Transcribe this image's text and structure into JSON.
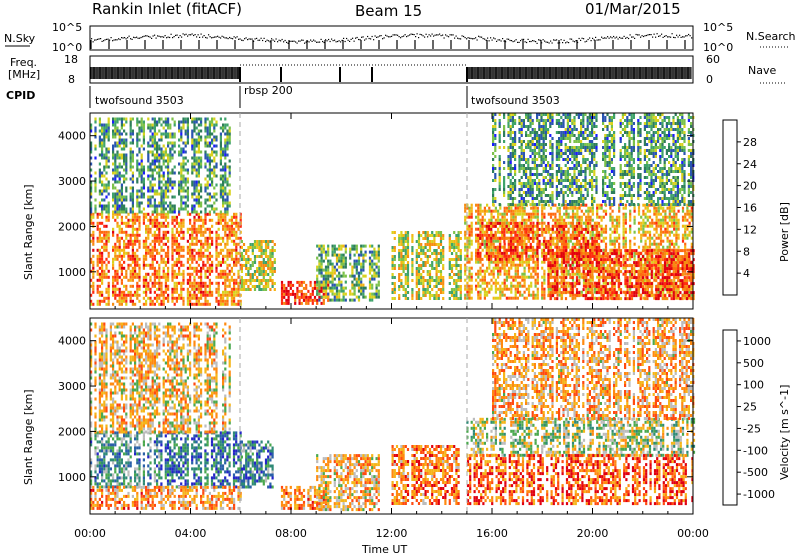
{
  "header": {
    "station": "Rankin Inlet (fitACF)",
    "beam": "Beam 15",
    "date": "01/Mar/2015"
  },
  "top_strips": {
    "nsky_label": "N.Sky",
    "nsky_ticks": [
      "10^5",
      "10^0"
    ],
    "nsearch_label": "N.Search",
    "nsearch_ticks": [
      "10^5",
      "10^0"
    ],
    "freq_label_1": "Freq.",
    "freq_label_2": "[MHz]",
    "freq_ticks": [
      "18",
      "8"
    ],
    "nave_label": "Nave",
    "nave_ticks": [
      "60",
      "0"
    ],
    "cpid_label": "CPID",
    "cpid_segments": [
      {
        "name": "twofsound 3503",
        "start_hour": 0,
        "end_hour": 6
      },
      {
        "name": "rbsp 200",
        "start_hour": 6,
        "end_hour": 15
      },
      {
        "name": "twofsound 3503",
        "start_hour": 15,
        "end_hour": 24
      }
    ]
  },
  "chart_data": [
    {
      "type": "heatmap",
      "name": "power-panel",
      "ylabel": "Slant Range [km]",
      "xlabel": "Time UT",
      "x_range_hours": [
        0,
        24
      ],
      "y_range_km": [
        180,
        4500
      ],
      "x_ticks": [
        "00:00",
        "04:00",
        "08:00",
        "12:00",
        "16:00",
        "20:00",
        "00:00"
      ],
      "x_tick_hours": [
        0,
        4,
        8,
        12,
        16,
        20,
        24
      ],
      "y_ticks": [
        "1000",
        "2000",
        "3000",
        "4000"
      ],
      "y_tick_values": [
        1000,
        2000,
        3000,
        4000
      ],
      "colorbar": {
        "label": "Power [dB]",
        "ticks": [
          "4",
          "8",
          "12",
          "16",
          "20",
          "24",
          "28"
        ],
        "range": [
          0,
          32
        ],
        "colors": [
          "#1a1aff",
          "#2a55b0",
          "#2e7d5a",
          "#3fa36a",
          "#7cc24a",
          "#d9d21e",
          "#f5b515",
          "#f58c12",
          "#ff6a10",
          "#ff2a10",
          "#e00010"
        ]
      },
      "regions": [
        {
          "t0": 0.0,
          "t1": 6.0,
          "r0": 300,
          "r1": 2300,
          "level": 0.72
        },
        {
          "t0": 0.0,
          "t1": 5.6,
          "r0": 2300,
          "r1": 4400,
          "level": 0.3
        },
        {
          "t0": 6.0,
          "t1": 7.4,
          "r0": 600,
          "r1": 1700,
          "level": 0.5
        },
        {
          "t0": 7.6,
          "t1": 9.5,
          "r0": 300,
          "r1": 800,
          "level": 0.88
        },
        {
          "t0": 9.0,
          "t1": 11.5,
          "r0": 400,
          "r1": 1600,
          "level": 0.35
        },
        {
          "t0": 12.0,
          "t1": 14.8,
          "r0": 400,
          "r1": 1900,
          "level": 0.5
        },
        {
          "t0": 14.8,
          "t1": 24.0,
          "r0": 400,
          "r1": 2500,
          "level": 0.62
        },
        {
          "t0": 15.4,
          "t1": 20.3,
          "r0": 1300,
          "r1": 2100,
          "level": 0.8
        },
        {
          "t0": 18.2,
          "t1": 24.0,
          "r0": 400,
          "r1": 1500,
          "level": 0.85
        },
        {
          "t0": 16.0,
          "t1": 24.0,
          "r0": 2500,
          "r1": 4500,
          "level": 0.3
        }
      ]
    },
    {
      "type": "heatmap",
      "name": "velocity-panel",
      "ylabel": "Slant Range [km]",
      "xlabel": "Time UT",
      "x_range_hours": [
        0,
        24
      ],
      "y_range_km": [
        180,
        4500
      ],
      "x_ticks": [
        "00:00",
        "04:00",
        "08:00",
        "12:00",
        "16:00",
        "20:00",
        "00:00"
      ],
      "x_tick_hours": [
        0,
        4,
        8,
        12,
        16,
        20,
        24
      ],
      "y_ticks": [
        "1000",
        "2000",
        "3000",
        "4000"
      ],
      "y_tick_values": [
        1000,
        2000,
        3000,
        4000
      ],
      "colorbar": {
        "label": "Velocity [m s^-1]",
        "ticks": [
          "1000",
          "500",
          "100",
          "25",
          "-25",
          "-100",
          "-500",
          "-1000"
        ],
        "colors": [
          "#2525c8",
          "#2a60a8",
          "#2f8a76",
          "#4aa84e",
          "#bcbcbc",
          "#f5b51a",
          "#ff8a10",
          "#ff4a10",
          "#e00010"
        ]
      },
      "regions": [
        {
          "t0": 0.0,
          "t1": 2.8,
          "r0": 800,
          "r1": 2000,
          "level": 0.32
        },
        {
          "t0": 2.8,
          "t1": 6.0,
          "r0": 800,
          "r1": 2000,
          "level": 0.2
        },
        {
          "t0": 6.0,
          "t1": 7.4,
          "r0": 800,
          "r1": 1800,
          "level": 0.25
        },
        {
          "t0": 0.0,
          "t1": 6.0,
          "r0": 300,
          "r1": 800,
          "level": 0.68
        },
        {
          "t0": 0.0,
          "t1": 5.6,
          "r0": 2000,
          "r1": 4400,
          "level": 0.6
        },
        {
          "t0": 7.6,
          "t1": 9.5,
          "r0": 300,
          "r1": 800,
          "level": 0.7
        },
        {
          "t0": 9.0,
          "t1": 11.5,
          "r0": 300,
          "r1": 1500,
          "level": 0.62
        },
        {
          "t0": 12.0,
          "t1": 14.8,
          "r0": 400,
          "r1": 1700,
          "level": 0.75
        },
        {
          "t0": 14.8,
          "t1": 24.0,
          "r0": 1500,
          "r1": 2300,
          "level": 0.48
        },
        {
          "t0": 15.0,
          "t1": 24.0,
          "r0": 400,
          "r1": 1500,
          "level": 0.82
        },
        {
          "t0": 16.0,
          "t1": 24.0,
          "r0": 2300,
          "r1": 4500,
          "level": 0.66
        }
      ]
    }
  ]
}
